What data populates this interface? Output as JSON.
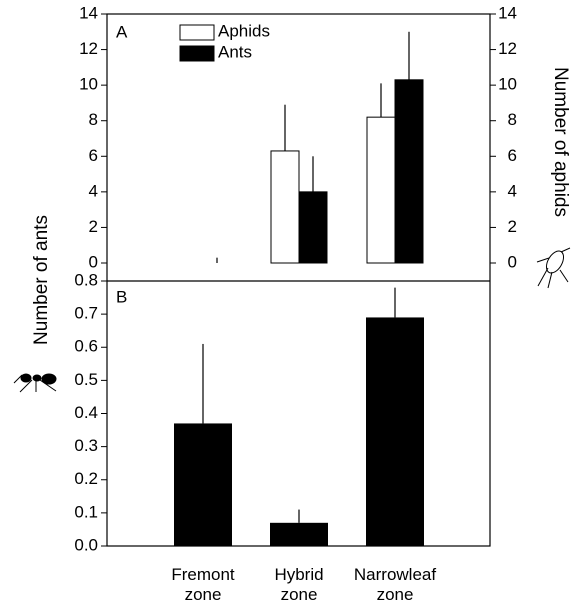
{
  "chart_data": [
    {
      "type": "bar",
      "panel_label": "A",
      "ylabel": "Number of ants",
      "y2label": "Number of aphids",
      "ylim": [
        0,
        14
      ],
      "yticks": [
        0,
        2,
        4,
        6,
        8,
        10,
        12,
        14
      ],
      "y2lim": [
        0,
        14
      ],
      "y2ticks": [
        0,
        2,
        4,
        6,
        8,
        10,
        12,
        14
      ],
      "legend": "top-left",
      "series": [
        {
          "name": "Aphids",
          "color": "#ffffff",
          "axis": "y2",
          "values": [
            0,
            6.3,
            8.2
          ],
          "errors": [
            0,
            2.6,
            1.9
          ]
        },
        {
          "name": "Ants",
          "color": "#000000",
          "axis": "y",
          "values": [
            0,
            4.0,
            10.3
          ],
          "errors": [
            0.3,
            2.0,
            2.7
          ]
        }
      ]
    },
    {
      "type": "bar",
      "panel_label": "B",
      "categories": [
        "Fremont zone",
        "Hybrid zone",
        "Narrowleaf zone"
      ],
      "values": [
        0.37,
        0.07,
        0.69
      ],
      "errors": [
        0.24,
        0.04,
        0.09
      ],
      "color": "#000000",
      "ylim": [
        0,
        0.8
      ],
      "yticks": [
        {
          "value": 0,
          "label": "0.0"
        },
        0.1,
        0.2,
        0.3,
        0.4,
        0.5,
        0.6,
        0.7,
        0.8
      ]
    }
  ]
}
